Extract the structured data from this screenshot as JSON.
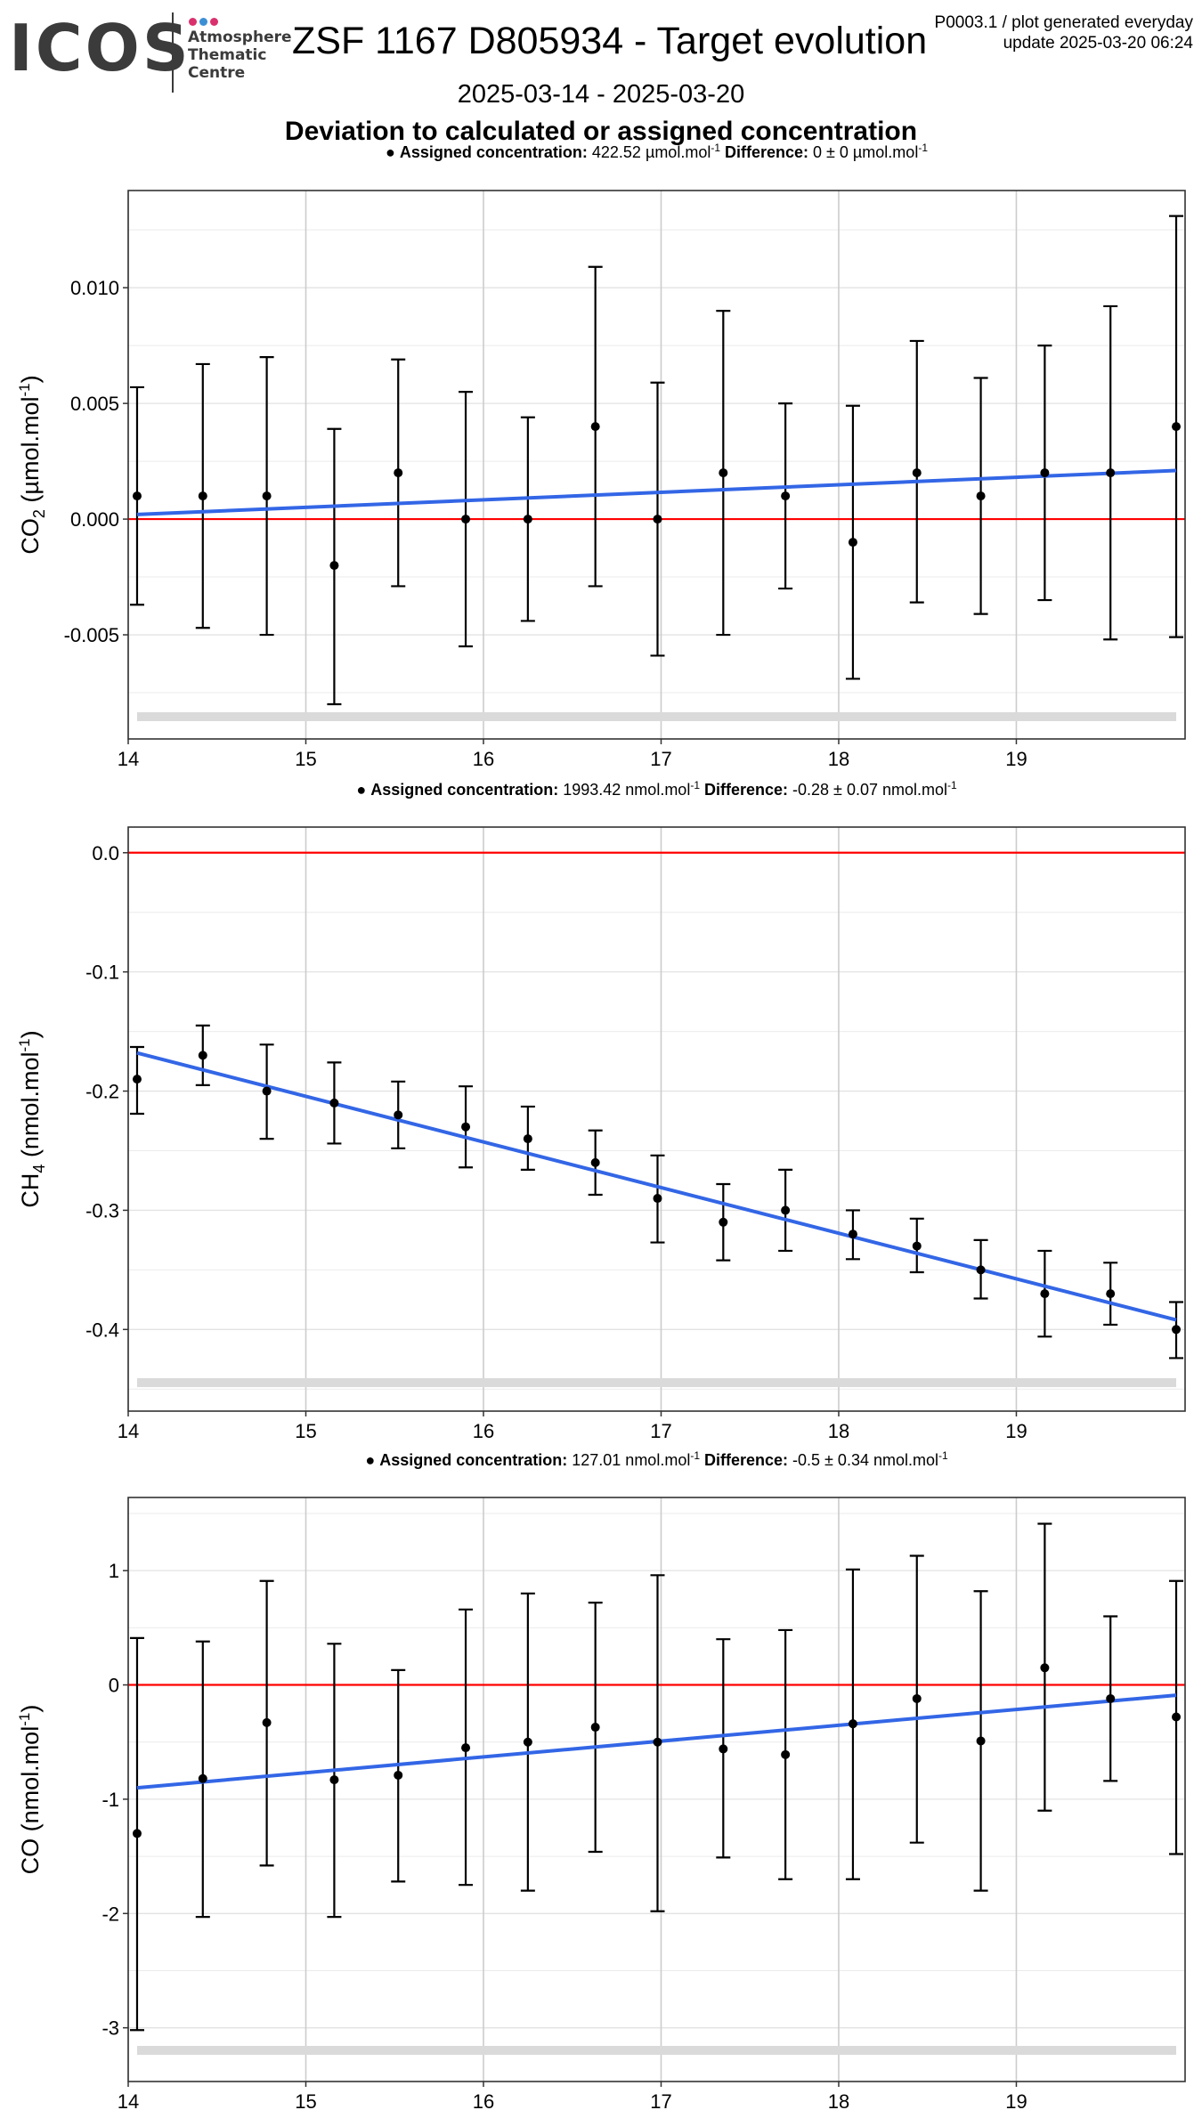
{
  "header": {
    "logo_text": "ICOS",
    "logo_subtitle": [
      "Atmosphere",
      "Thematic",
      "Centre"
    ],
    "logo_dot_colors": [
      "#d9316e",
      "#3c8fd4",
      "#d9316e"
    ],
    "title": "ZSF 1167 D805934 - Target evolution",
    "meta_line1": "P0003.1 / plot generated everyday",
    "meta_line2": "update  2025-03-20 06:24",
    "date_range": "2025-03-14 - 2025-03-20",
    "subtitle": "Deviation to calculated or assigned concentration"
  },
  "colors": {
    "trend_line": "#3366e6",
    "zero_line": "#ff0000",
    "points": "#000000",
    "gridline": "#cccccc",
    "bottom_band": "#dadada"
  },
  "chart_data": [
    {
      "type": "scatter",
      "gas_label": "CO",
      "gas_subscript": "2",
      "unit_label": "(µmol.mol",
      "legend_label": "Assigned concentration:",
      "legend_value": "422.52 µmol.mol",
      "difference_label": "Difference:",
      "difference_value": "0 ± 0 µmol.mol",
      "xlim": [
        14,
        19.95
      ],
      "ylim": [
        -0.0095,
        0.0142
      ],
      "x_ticks": [
        14,
        15,
        16,
        17,
        18,
        19
      ],
      "y_ticks": [
        -0.005,
        0.0,
        0.005,
        0.01
      ],
      "y_tick_labels": [
        "-0.005",
        "0.000",
        "0.005",
        "0.010"
      ],
      "x": [
        14.05,
        14.42,
        14.78,
        15.16,
        15.52,
        15.9,
        16.25,
        16.63,
        16.98,
        17.35,
        17.7,
        18.08,
        18.44,
        18.8,
        19.16,
        19.53,
        19.9
      ],
      "y": [
        0.001,
        0.001,
        0.001,
        -0.002,
        0.002,
        0.0,
        0.0,
        0.004,
        0.0,
        0.002,
        0.001,
        -0.001,
        0.002,
        0.001,
        0.002,
        0.002,
        0.004
      ],
      "err_low": [
        -0.0037,
        -0.0047,
        -0.005,
        -0.008,
        -0.0029,
        -0.0055,
        -0.0044,
        -0.0029,
        -0.0059,
        -0.005,
        -0.003,
        -0.0069,
        -0.0036,
        -0.0041,
        -0.0035,
        -0.0052,
        -0.0051
      ],
      "err_high": [
        0.0057,
        0.0067,
        0.007,
        0.0039,
        0.0069,
        0.0055,
        0.0044,
        0.0109,
        0.0059,
        0.009,
        0.005,
        0.0049,
        0.0077,
        0.0061,
        0.0075,
        0.0092,
        0.0131
      ],
      "trend": {
        "x": [
          14.05,
          19.9
        ],
        "y": [
          0.0002,
          0.0021
        ]
      },
      "reference_y": 0.0
    },
    {
      "type": "scatter",
      "gas_label": "CH",
      "gas_subscript": "4",
      "unit_label": "(nmol.mol",
      "legend_label": "Assigned concentration:",
      "legend_value": "1993.42 nmol.mol",
      "difference_label": "Difference:",
      "difference_value": "-0.28 ± 0.07 nmol.mol",
      "xlim": [
        14,
        19.95
      ],
      "ylim": [
        -0.4685,
        0.0215
      ],
      "x_ticks": [
        14,
        15,
        16,
        17,
        18,
        19
      ],
      "y_ticks": [
        -0.4,
        -0.3,
        -0.2,
        -0.1,
        0.0
      ],
      "y_tick_labels": [
        "-0.4",
        "-0.3",
        "-0.2",
        "-0.1",
        "0.0"
      ],
      "x": [
        14.05,
        14.42,
        14.78,
        15.16,
        15.52,
        15.9,
        16.25,
        16.63,
        16.98,
        17.35,
        17.7,
        18.08,
        18.44,
        18.8,
        19.16,
        19.53,
        19.9
      ],
      "y": [
        -0.19,
        -0.17,
        -0.2,
        -0.21,
        -0.22,
        -0.23,
        -0.24,
        -0.26,
        -0.29,
        -0.31,
        -0.3,
        -0.32,
        -0.33,
        -0.35,
        -0.37,
        -0.37,
        -0.4
      ],
      "err_low": [
        -0.219,
        -0.195,
        -0.24,
        -0.244,
        -0.248,
        -0.264,
        -0.266,
        -0.287,
        -0.327,
        -0.342,
        -0.334,
        -0.341,
        -0.352,
        -0.374,
        -0.406,
        -0.396,
        -0.424
      ],
      "err_high": [
        -0.163,
        -0.145,
        -0.161,
        -0.176,
        -0.192,
        -0.196,
        -0.213,
        -0.233,
        -0.254,
        -0.278,
        -0.266,
        -0.3,
        -0.307,
        -0.325,
        -0.334,
        -0.344,
        -0.377
      ],
      "trend": {
        "x": [
          14.05,
          19.9
        ],
        "y": [
          -0.168,
          -0.392
        ]
      },
      "reference_y": 0.0
    },
    {
      "type": "scatter",
      "gas_label": "CO",
      "gas_subscript": "",
      "unit_label": "(nmol.mol",
      "legend_label": "Assigned concentration:",
      "legend_value": "127.01 nmol.mol",
      "difference_label": "Difference:",
      "difference_value": "-0.5 ± 0.34 nmol.mol",
      "xlim": [
        14,
        19.95
      ],
      "ylim": [
        -3.47,
        1.64
      ],
      "x_ticks": [
        14,
        15,
        16,
        17,
        18,
        19
      ],
      "y_ticks": [
        -3,
        -2,
        -1,
        0,
        1
      ],
      "y_tick_labels": [
        "-3",
        "-2",
        "-1",
        "0",
        "1"
      ],
      "x": [
        14.05,
        14.42,
        14.78,
        15.16,
        15.52,
        15.9,
        16.25,
        16.63,
        16.98,
        17.35,
        17.7,
        18.08,
        18.44,
        18.8,
        19.16,
        19.53,
        19.9
      ],
      "y": [
        -1.3,
        -0.82,
        -0.33,
        -0.83,
        -0.79,
        -0.55,
        -0.5,
        -0.37,
        -0.5,
        -0.56,
        -0.61,
        -0.34,
        -0.12,
        -0.49,
        0.15,
        -0.12,
        -0.28
      ],
      "err_low": [
        -3.02,
        -2.03,
        -1.58,
        -2.03,
        -1.72,
        -1.75,
        -1.8,
        -1.46,
        -1.98,
        -1.51,
        -1.7,
        -1.7,
        -1.38,
        -1.8,
        -1.1,
        -0.84,
        -1.48
      ],
      "err_high": [
        0.41,
        0.38,
        0.91,
        0.36,
        0.13,
        0.66,
        0.8,
        0.72,
        0.96,
        0.4,
        0.48,
        1.01,
        1.13,
        0.82,
        1.41,
        0.6,
        0.91
      ],
      "trend": {
        "x": [
          14.05,
          19.9
        ],
        "y": [
          -0.9,
          -0.09
        ]
      },
      "reference_y": 0.0
    }
  ]
}
